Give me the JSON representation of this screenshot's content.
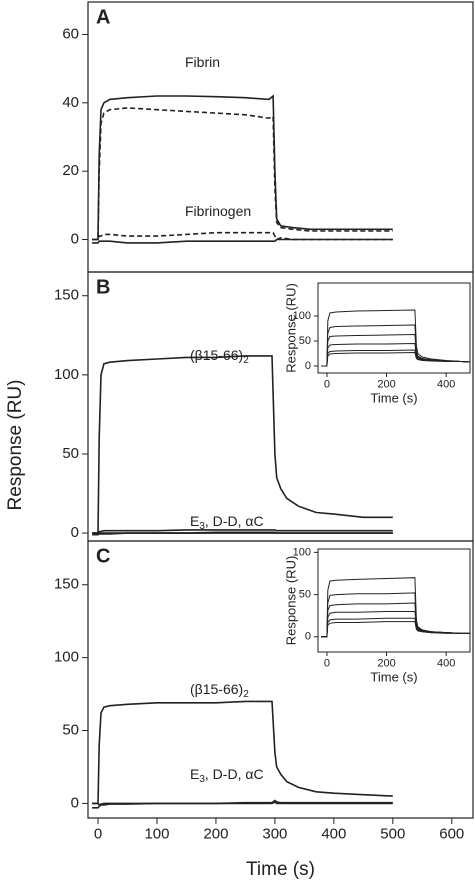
{
  "chart_data": [
    {
      "type": "line",
      "panel_label": "A",
      "x": [
        -10,
        0,
        2,
        5,
        10,
        20,
        50,
        100,
        150,
        200,
        250,
        290,
        297,
        300,
        303,
        310,
        330,
        360,
        400,
        450,
        500
      ],
      "xlim": [
        -17,
        636
      ],
      "ylim": [
        -9.5,
        69.5
      ],
      "yticks": [
        0,
        20,
        40,
        60
      ],
      "annotations": [
        {
          "text": "Fibrin"
        },
        {
          "text": "Fibrinogen"
        }
      ],
      "series": [
        {
          "color": "#222222",
          "dashed": false,
          "values": [
            0,
            0,
            25,
            38,
            40,
            41,
            41.5,
            42,
            42,
            41.8,
            41.5,
            41,
            42,
            20,
            6,
            4,
            3.5,
            3,
            3,
            3,
            3
          ]
        },
        {
          "color": "#222222",
          "dashed": true,
          "values": [
            0,
            0,
            20,
            34,
            37,
            38,
            38.5,
            38,
            37.5,
            37,
            36.5,
            35.5,
            36,
            15,
            5,
            3.5,
            3,
            2.5,
            2.5,
            2.5,
            2.5
          ]
        },
        {
          "color": "#222222",
          "dashed": false,
          "values": [
            -1,
            -1,
            -0.5,
            -0.5,
            -0.5,
            -0.5,
            -1,
            -1,
            -0.5,
            -0.5,
            -0.5,
            -0.5,
            -0.5,
            -0.5,
            0,
            0,
            0,
            0,
            0,
            0,
            0
          ]
        },
        {
          "color": "#222222",
          "dashed": true,
          "values": [
            0,
            0,
            1,
            1,
            1.5,
            1.5,
            1,
            1,
            1.5,
            2,
            2,
            2,
            2,
            1,
            0,
            0.5,
            0,
            0,
            0,
            0,
            0
          ]
        }
      ]
    },
    {
      "type": "line",
      "panel_label": "B",
      "ylabel": "Response (RU)",
      "x": [
        -10,
        0,
        2,
        5,
        10,
        20,
        50,
        100,
        150,
        200,
        250,
        295,
        300,
        303,
        310,
        320,
        340,
        370,
        400,
        450,
        500
      ],
      "xlim": [
        -17,
        636
      ],
      "ylim": [
        -5,
        165
      ],
      "yticks": [
        0,
        50,
        100,
        150
      ],
      "annotations": [
        {
          "text": "(β15-66)",
          "subscript": "2"
        },
        {
          "text": "E",
          "subscript": "3",
          "text_after": ", D-D, αC"
        }
      ],
      "series": [
        {
          "color": "#222222",
          "dashed": false,
          "values": [
            0,
            0,
            60,
            100,
            107,
            108,
            109,
            110,
            111,
            111,
            112,
            112,
            50,
            35,
            28,
            22,
            17,
            13,
            12,
            10,
            10
          ]
        },
        {
          "color": "#222222",
          "dashed": false,
          "values": [
            0,
            0,
            1,
            1,
            1.5,
            1.5,
            1.5,
            1.5,
            2,
            2,
            2,
            2,
            2,
            1.5,
            1.5,
            1.5,
            1.5,
            1.5,
            1.5,
            1.5,
            1.5
          ]
        },
        {
          "color": "#222222",
          "dashed": false,
          "values": [
            0,
            0,
            0,
            0,
            0,
            0,
            0,
            0,
            0,
            0,
            0,
            0,
            0,
            0,
            0,
            0,
            0,
            0,
            0,
            0,
            0
          ]
        },
        {
          "color": "#222222",
          "dashed": false,
          "values": [
            -1,
            -1,
            -0.5,
            -0.5,
            -0.5,
            -0.5,
            0,
            0,
            0,
            0.5,
            0.5,
            0.5,
            0.5,
            0,
            0,
            0,
            0,
            0,
            0,
            0,
            0
          ]
        }
      ]
    },
    {
      "type": "line",
      "panel_label": "C",
      "xlabel": "Time (s)",
      "x": [
        -10,
        0,
        2,
        5,
        10,
        20,
        50,
        100,
        150,
        200,
        250,
        295,
        300,
        303,
        310,
        320,
        340,
        370,
        400,
        450,
        500
      ],
      "xlim": [
        -17,
        636
      ],
      "ylim": [
        -10,
        180
      ],
      "xticks": [
        0,
        100,
        200,
        300,
        400,
        500,
        600
      ],
      "yticks": [
        0,
        50,
        100,
        150
      ],
      "annotations": [
        {
          "text": "(β15-66)",
          "subscript": "2"
        },
        {
          "text": "E",
          "subscript": "3",
          "text_after": ", D-D, αC"
        }
      ],
      "series": [
        {
          "color": "#222222",
          "dashed": false,
          "values": [
            0,
            0,
            40,
            62,
            66,
            67,
            68,
            69,
            69,
            69,
            70,
            70,
            35,
            25,
            20,
            15,
            11,
            8,
            7,
            6,
            5
          ]
        },
        {
          "color": "#222222",
          "dashed": false,
          "values": [
            0,
            0,
            -1,
            -0.5,
            0,
            0,
            0,
            0,
            0,
            0,
            0.5,
            0.5,
            2,
            1,
            0.5,
            0.5,
            0.5,
            0.5,
            0.5,
            0.5,
            0.5
          ]
        },
        {
          "color": "#222222",
          "dashed": false,
          "values": [
            -3,
            -3,
            -2,
            -1,
            -1,
            -0.5,
            -0.5,
            0,
            0,
            0,
            0,
            0,
            1,
            0,
            0,
            0,
            0,
            0,
            0,
            0,
            0
          ]
        }
      ]
    },
    {
      "type": "line",
      "xlabel": "Time (s)",
      "ylabel": "Response (RU)",
      "x": [
        -20,
        0,
        3,
        10,
        30,
        100,
        200,
        295,
        300,
        305,
        320,
        350,
        400,
        450,
        480
      ],
      "xlim": [
        -30,
        480
      ],
      "ylim": [
        -14,
        166
      ],
      "xticks": [
        0,
        200,
        400
      ],
      "yticks": [
        0,
        50,
        100
      ],
      "series": [
        {
          "color": "#222222",
          "dashed": false,
          "values": [
            0,
            0,
            90,
            106,
            108,
            110,
            111,
            112,
            40,
            25,
            18,
            14,
            11,
            9,
            8
          ]
        },
        {
          "color": "#222222",
          "dashed": false,
          "values": [
            0,
            0,
            65,
            77,
            79,
            80,
            81,
            82,
            30,
            20,
            15,
            12,
            10,
            9,
            8
          ]
        },
        {
          "color": "#222222",
          "dashed": false,
          "values": [
            0,
            0,
            50,
            59,
            60,
            61,
            62,
            63,
            25,
            18,
            14,
            12,
            10,
            9,
            8
          ]
        },
        {
          "color": "#222222",
          "dashed": false,
          "values": [
            0,
            0,
            36,
            42,
            43,
            44,
            44,
            45,
            20,
            16,
            13,
            11,
            10,
            9,
            8
          ]
        },
        {
          "color": "#222222",
          "dashed": false,
          "values": [
            0,
            0,
            25,
            29,
            30,
            31,
            31,
            32,
            17,
            14,
            12,
            11,
            10,
            9,
            8
          ]
        },
        {
          "color": "#222222",
          "dashed": false,
          "values": [
            0,
            0,
            20,
            24,
            25,
            26,
            26,
            27,
            15,
            13,
            11,
            10,
            9,
            9,
            8
          ]
        }
      ]
    },
    {
      "type": "line",
      "xlabel": "Time (s)",
      "ylabel": "Response (RU)",
      "x": [
        -20,
        0,
        3,
        10,
        30,
        100,
        200,
        295,
        300,
        305,
        320,
        350,
        400,
        450,
        480
      ],
      "xlim": [
        -30,
        480
      ],
      "ylim": [
        -18,
        104
      ],
      "xticks": [
        0,
        200,
        400
      ],
      "yticks": [
        0,
        50,
        100
      ],
      "series": [
        {
          "color": "#222222",
          "dashed": false,
          "values": [
            0,
            0,
            55,
            66,
            67,
            68,
            69,
            70,
            20,
            12,
            8,
            6,
            5,
            4,
            4
          ]
        },
        {
          "color": "#222222",
          "dashed": false,
          "values": [
            0,
            0,
            40,
            49,
            50,
            51,
            51,
            52,
            17,
            11,
            8,
            6,
            5,
            4,
            4
          ]
        },
        {
          "color": "#222222",
          "dashed": false,
          "values": [
            0,
            0,
            31,
            37,
            38,
            39,
            39,
            40,
            14,
            10,
            7,
            6,
            5,
            4,
            4
          ]
        },
        {
          "color": "#222222",
          "dashed": false,
          "values": [
            0,
            0,
            23,
            28,
            29,
            29,
            30,
            30,
            12,
            9,
            7,
            5,
            5,
            4,
            4
          ]
        },
        {
          "color": "#222222",
          "dashed": false,
          "values": [
            0,
            0,
            17,
            20,
            21,
            21,
            22,
            22,
            10,
            8,
            6,
            5,
            5,
            4,
            4
          ]
        },
        {
          "color": "#222222",
          "dashed": false,
          "values": [
            0,
            0,
            14,
            16,
            17,
            17,
            18,
            18,
            9,
            7,
            6,
            5,
            4,
            4,
            4
          ]
        }
      ]
    }
  ]
}
